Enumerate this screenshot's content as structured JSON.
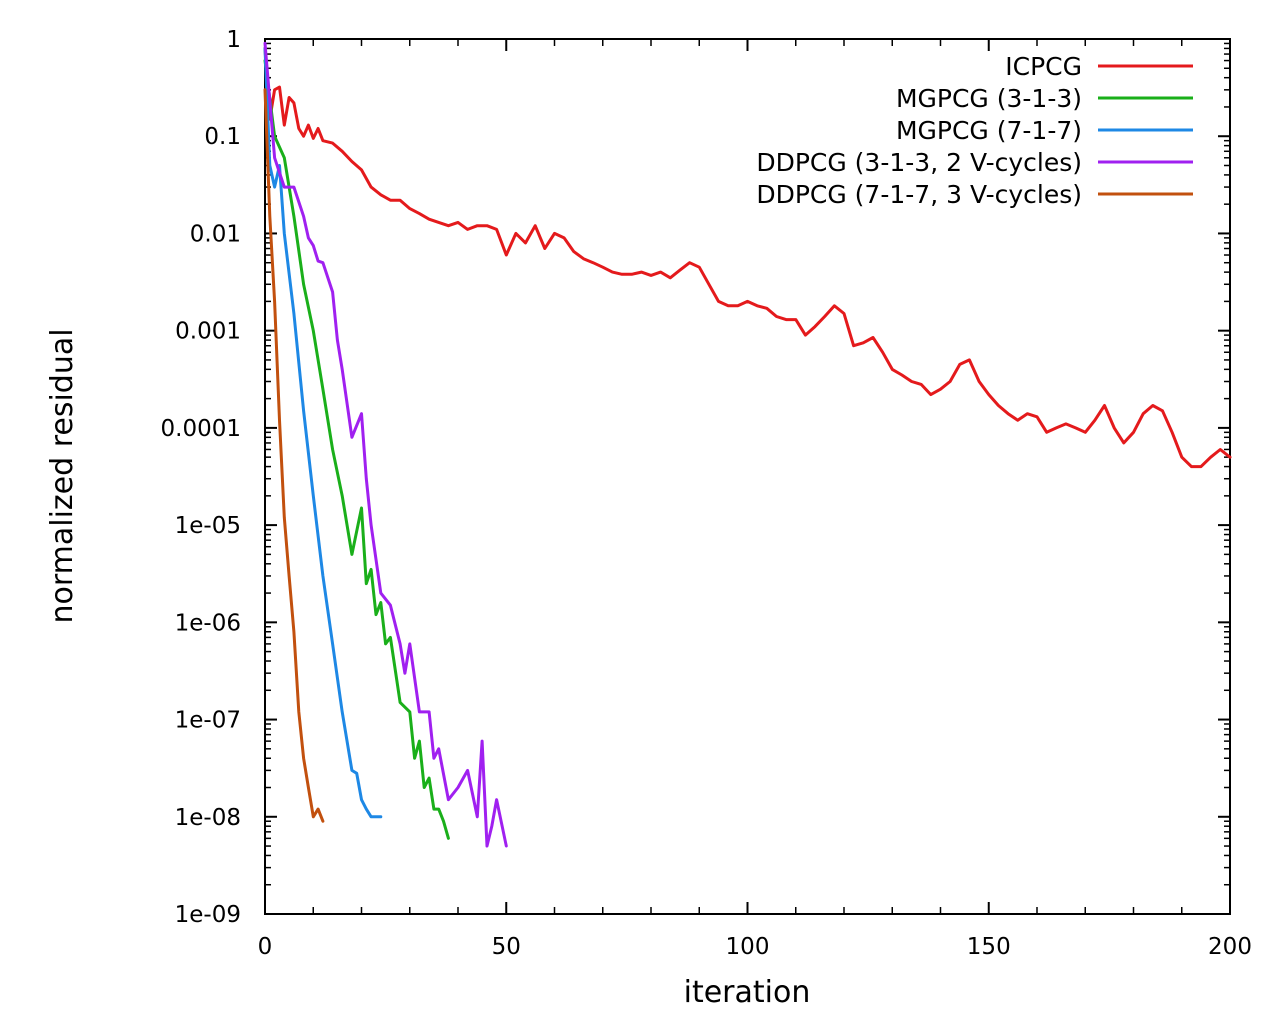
{
  "chart_data": {
    "type": "line",
    "xlabel": "iteration",
    "ylabel": "normalized residual",
    "xlim": [
      0,
      200
    ],
    "ylim": [
      1e-09,
      1
    ],
    "yscale": "log",
    "grid": false,
    "legend_position": "top-right",
    "x_ticks": [
      {
        "value": 0,
        "label": "0"
      },
      {
        "value": 50,
        "label": "50"
      },
      {
        "value": 100,
        "label": "100"
      },
      {
        "value": 150,
        "label": "150"
      },
      {
        "value": 200,
        "label": "200"
      }
    ],
    "y_ticks": [
      {
        "value": 1,
        "label": "1"
      },
      {
        "value": 0.1,
        "label": "0.1"
      },
      {
        "value": 0.01,
        "label": "0.01"
      },
      {
        "value": 0.001,
        "label": "0.001"
      },
      {
        "value": 0.0001,
        "label": "0.0001"
      },
      {
        "value": 1e-05,
        "label": "1e-05"
      },
      {
        "value": 1e-06,
        "label": "1e-06"
      },
      {
        "value": 1e-07,
        "label": "1e-07"
      },
      {
        "value": 1e-08,
        "label": "1e-08"
      },
      {
        "value": 1e-09,
        "label": "1e-09"
      }
    ],
    "series": [
      {
        "name": "ICPCG",
        "color": "#e41a1c",
        "x": [
          0,
          1,
          2,
          3,
          4,
          5,
          6,
          7,
          8,
          9,
          10,
          11,
          12,
          14,
          16,
          18,
          20,
          22,
          24,
          26,
          28,
          30,
          32,
          34,
          36,
          38,
          40,
          42,
          44,
          46,
          48,
          50,
          52,
          54,
          56,
          58,
          60,
          62,
          64,
          66,
          68,
          70,
          72,
          74,
          76,
          78,
          80,
          82,
          84,
          86,
          88,
          90,
          92,
          94,
          96,
          98,
          100,
          102,
          104,
          106,
          108,
          110,
          112,
          114,
          116,
          118,
          120,
          122,
          124,
          126,
          128,
          130,
          132,
          134,
          136,
          138,
          140,
          142,
          144,
          146,
          148,
          150,
          152,
          154,
          156,
          158,
          160,
          162,
          164,
          166,
          168,
          170,
          172,
          174,
          176,
          178,
          180,
          182,
          184,
          186,
          188,
          190,
          192,
          194,
          196,
          198,
          200
        ],
        "y": [
          0.8,
          0.15,
          0.3,
          0.32,
          0.13,
          0.25,
          0.22,
          0.12,
          0.1,
          0.13,
          0.095,
          0.12,
          0.09,
          0.085,
          0.07,
          0.055,
          0.045,
          0.03,
          0.025,
          0.022,
          0.022,
          0.018,
          0.016,
          0.014,
          0.013,
          0.012,
          0.013,
          0.011,
          0.012,
          0.012,
          0.011,
          0.006,
          0.01,
          0.008,
          0.012,
          0.007,
          0.01,
          0.009,
          0.0065,
          0.0055,
          0.005,
          0.0045,
          0.004,
          0.0038,
          0.0038,
          0.004,
          0.0037,
          0.004,
          0.0035,
          0.0042,
          0.005,
          0.0045,
          0.003,
          0.002,
          0.0018,
          0.0018,
          0.002,
          0.0018,
          0.0017,
          0.0014,
          0.0013,
          0.0013,
          0.0009,
          0.0011,
          0.0014,
          0.0018,
          0.0015,
          0.0007,
          0.00075,
          0.00085,
          0.0006,
          0.0004,
          0.00035,
          0.0003,
          0.00028,
          0.00022,
          0.00025,
          0.0003,
          0.00045,
          0.0005,
          0.0003,
          0.00022,
          0.00017,
          0.00014,
          0.00012,
          0.00014,
          0.00013,
          9e-05,
          0.0001,
          0.00011,
          0.0001,
          9e-05,
          0.00012,
          0.00017,
          0.0001,
          7e-05,
          9e-05,
          0.00014,
          0.00017,
          0.00015,
          9e-05,
          5e-05,
          4e-05,
          4e-05,
          5e-05,
          6e-05,
          5e-05
        ]
      },
      {
        "name": "MGPCG (3-1-3)",
        "color": "#1aaf1a",
        "x": [
          0,
          2,
          4,
          6,
          8,
          10,
          12,
          14,
          16,
          18,
          20,
          21,
          22,
          23,
          24,
          25,
          26,
          28,
          30,
          31,
          32,
          33,
          34,
          35,
          36,
          37,
          38
        ],
        "y": [
          0.6,
          0.1,
          0.06,
          0.015,
          0.003,
          0.001,
          0.00025,
          6e-05,
          2e-05,
          5e-06,
          1.5e-05,
          2.5e-06,
          3.5e-06,
          1.2e-06,
          1.6e-06,
          6e-07,
          7e-07,
          1.5e-07,
          1.2e-07,
          4e-08,
          6e-08,
          2e-08,
          2.5e-08,
          1.2e-08,
          1.2e-08,
          9e-09,
          6e-09
        ]
      },
      {
        "name": "MGPCG (7-1-7)",
        "color": "#1e88e5",
        "x": [
          0,
          1,
          2,
          3,
          4,
          6,
          8,
          10,
          12,
          14,
          16,
          18,
          19,
          20,
          21,
          22,
          23,
          24
        ],
        "y": [
          0.8,
          0.05,
          0.03,
          0.05,
          0.01,
          0.0015,
          0.00015,
          2e-05,
          3e-06,
          6e-07,
          1.2e-07,
          3e-08,
          2.8e-08,
          1.5e-08,
          1.2e-08,
          1e-08,
          1e-08,
          1e-08
        ]
      },
      {
        "name": "DDPCG (3-1-3, 2 V-cycles)",
        "color": "#a020f0",
        "x": [
          0,
          2,
          4,
          6,
          8,
          9,
          10,
          11,
          12,
          14,
          15,
          16,
          18,
          20,
          21,
          22,
          24,
          26,
          28,
          29,
          30,
          32,
          34,
          35,
          36,
          38,
          40,
          42,
          44,
          45,
          46,
          47,
          48,
          50
        ],
        "y": [
          0.9,
          0.06,
          0.03,
          0.03,
          0.015,
          0.009,
          0.0075,
          0.0052,
          0.005,
          0.0025,
          0.0008,
          0.0004,
          8e-05,
          0.00014,
          3e-05,
          1e-05,
          2e-06,
          1.5e-06,
          6e-07,
          3e-07,
          6e-07,
          1.2e-07,
          1.2e-07,
          4e-08,
          5e-08,
          1.5e-08,
          2e-08,
          3e-08,
          1e-08,
          6e-08,
          5e-09,
          8e-09,
          1.5e-08,
          5e-09
        ]
      },
      {
        "name": "DDPCG (7-1-7, 3 V-cycles)",
        "color": "#c2500e",
        "x": [
          0,
          1,
          2,
          3,
          4,
          5,
          6,
          7,
          8,
          9,
          10,
          11,
          12
        ],
        "y": [
          0.3,
          0.015,
          0.002,
          0.00012,
          1.2e-05,
          3e-06,
          8e-07,
          1.2e-07,
          4e-08,
          2e-08,
          1e-08,
          1.2e-08,
          9e-09
        ]
      }
    ]
  }
}
